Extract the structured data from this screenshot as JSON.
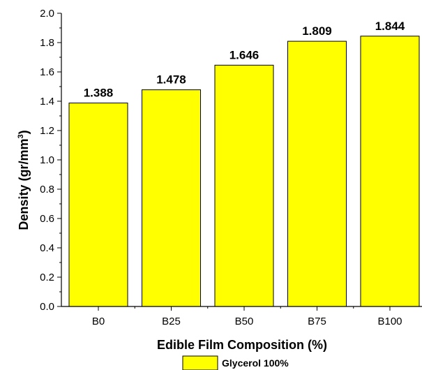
{
  "chart_data": {
    "type": "bar",
    "categories": [
      "B0",
      "B25",
      "B50",
      "B75",
      "B100"
    ],
    "series": [
      {
        "name": "Glycerol 100%",
        "values": [
          1.388,
          1.478,
          1.646,
          1.809,
          1.844
        ],
        "color": "#FFFF00"
      }
    ],
    "data_labels": [
      "1.388",
      "1.478",
      "1.646",
      "1.809",
      "1.844"
    ],
    "xlabel": "Edible Film Composition (%)",
    "ylabel": "Density (gr/mm",
    "ylabel_superscript": "3",
    "ylabel_suffix": ")",
    "ylim": [
      0,
      2.0
    ],
    "yticks": [
      "0.0",
      "0.2",
      "0.4",
      "0.6",
      "0.8",
      "1.0",
      "1.2",
      "1.4",
      "1.6",
      "1.8",
      "2.0"
    ],
    "grid": false,
    "legend": "bottom-center",
    "bar_edge_color": "#000000"
  }
}
